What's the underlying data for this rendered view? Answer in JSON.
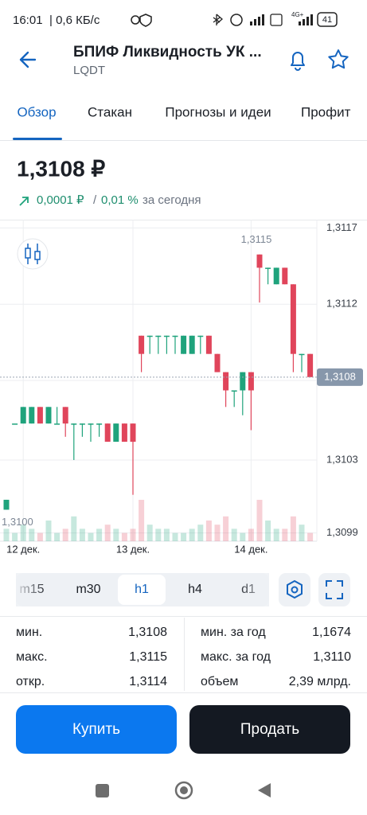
{
  "status": {
    "time": "16:01",
    "speed": "| 0,6 КБ/с",
    "network": "4G+",
    "battery": "41"
  },
  "header": {
    "title": "БПИФ Ликвидность УК ...",
    "ticker": "LQDT"
  },
  "tabs": [
    "Обзор",
    "Стакан",
    "Прогнозы и идеи",
    "Профит"
  ],
  "price": {
    "value": "1,3108 ₽",
    "change_abs": "0,0001 ₽",
    "separator": "/",
    "change_pct": "0,01 %",
    "period": "за сегодня"
  },
  "chart_data": {
    "type": "candlestick",
    "categories": [
      null,
      null,
      "12 дек.",
      null,
      null,
      null,
      null,
      null,
      null,
      null,
      null,
      null,
      null,
      null,
      null,
      "13 дек.",
      null,
      null,
      null,
      null,
      null,
      null,
      null,
      null,
      null,
      null,
      null,
      null,
      null,
      "14 дек.",
      null,
      null,
      null,
      null,
      null,
      null,
      null
    ],
    "open": [
      1.31,
      1.31052,
      1.31052,
      1.31052,
      1.31062,
      1.31052,
      1.31052,
      1.31062,
      1.31052,
      1.31052,
      1.31052,
      1.31052,
      1.31052,
      1.31041,
      1.31052,
      1.31052,
      1.31105,
      1.31105,
      1.31105,
      1.31105,
      1.31105,
      1.31094,
      1.31094,
      1.31105,
      1.31105,
      1.31094,
      1.31083,
      1.31072,
      1.31072,
      1.31083,
      1.31154,
      1.31146,
      1.31136,
      1.31146,
      1.31136,
      1.31094,
      1.31094
    ],
    "high": [
      1.31006,
      1.31052,
      1.31062,
      1.31062,
      1.31062,
      1.31062,
      1.31062,
      1.31062,
      1.31052,
      1.31052,
      1.31052,
      1.31052,
      1.31052,
      1.31052,
      1.31052,
      1.31052,
      1.31105,
      1.31105,
      1.31105,
      1.31105,
      1.31105,
      1.31105,
      1.31105,
      1.31105,
      1.31105,
      1.31094,
      1.31083,
      1.31072,
      1.31083,
      1.31083,
      1.31154,
      1.31146,
      1.31146,
      1.31146,
      1.31136,
      1.31094,
      1.31094
    ],
    "low": [
      1.31,
      1.31052,
      1.31052,
      1.31052,
      1.31052,
      1.31052,
      1.31052,
      1.31044,
      1.3103,
      1.31044,
      1.31041,
      1.31044,
      1.31041,
      1.31041,
      1.31041,
      1.31009,
      1.31083,
      1.31094,
      1.31094,
      1.31094,
      1.31094,
      1.31094,
      1.31094,
      1.31094,
      1.31094,
      1.31083,
      1.31062,
      1.31062,
      1.31057,
      1.31048,
      1.31125,
      1.31136,
      1.31136,
      1.31136,
      1.31083,
      1.31083,
      1.3108
    ],
    "close": [
      1.31006,
      1.31052,
      1.31062,
      1.31062,
      1.31052,
      1.31062,
      1.31052,
      1.31052,
      1.31052,
      1.31052,
      1.31052,
      1.31052,
      1.31041,
      1.31052,
      1.31041,
      1.31041,
      1.31094,
      1.31105,
      1.31105,
      1.31105,
      1.31105,
      1.31105,
      1.31105,
      1.31105,
      1.31094,
      1.31083,
      1.31072,
      1.31072,
      1.31083,
      1.31072,
      1.31146,
      1.31146,
      1.31146,
      1.31136,
      1.31094,
      1.31094,
      1.3108
    ],
    "volumes": [
      3,
      2,
      4,
      3,
      2,
      5,
      2,
      3,
      6,
      3,
      2,
      3,
      4,
      3,
      2,
      3,
      10,
      4,
      3,
      3,
      2,
      2,
      3,
      4,
      5,
      4,
      6,
      3,
      2,
      3,
      10,
      5,
      3,
      3,
      6,
      4,
      2
    ],
    "up_color": "#1fa37c",
    "down_color": "#e0455b",
    "ylim": [
      1.30981,
      1.31175
    ],
    "yticks": [
      {
        "value": 1.3117,
        "label": "1,3117"
      },
      {
        "value": 1.31124,
        "label": "1,3112"
      },
      {
        "value": 1.31078,
        "label": "1,3108"
      },
      {
        "value": 1.3103,
        "label": "1,3103"
      },
      {
        "value": 1.30986,
        "label": "1,3099"
      }
    ],
    "current": {
      "value": 1.3108,
      "label": "1,3108"
    },
    "max_label": {
      "value": 1.31154,
      "label": "1,3115"
    },
    "min_label": {
      "value": 1.31,
      "label": "1,3100"
    },
    "grid": true
  },
  "timeframes": [
    "m15",
    "m30",
    "h1",
    "h4",
    "d1"
  ],
  "active_timeframe": 2,
  "stats": {
    "left": [
      [
        "мин.",
        "1,3108"
      ],
      [
        "макс.",
        "1,3115"
      ],
      [
        "откр.",
        "1,3114"
      ]
    ],
    "right": [
      [
        "мин. за год",
        "1,1674"
      ],
      [
        "макс. за год",
        "1,3110"
      ],
      [
        "объем",
        "2,39 млрд."
      ]
    ]
  },
  "buttons": {
    "buy": "Купить",
    "sell": "Продать"
  }
}
